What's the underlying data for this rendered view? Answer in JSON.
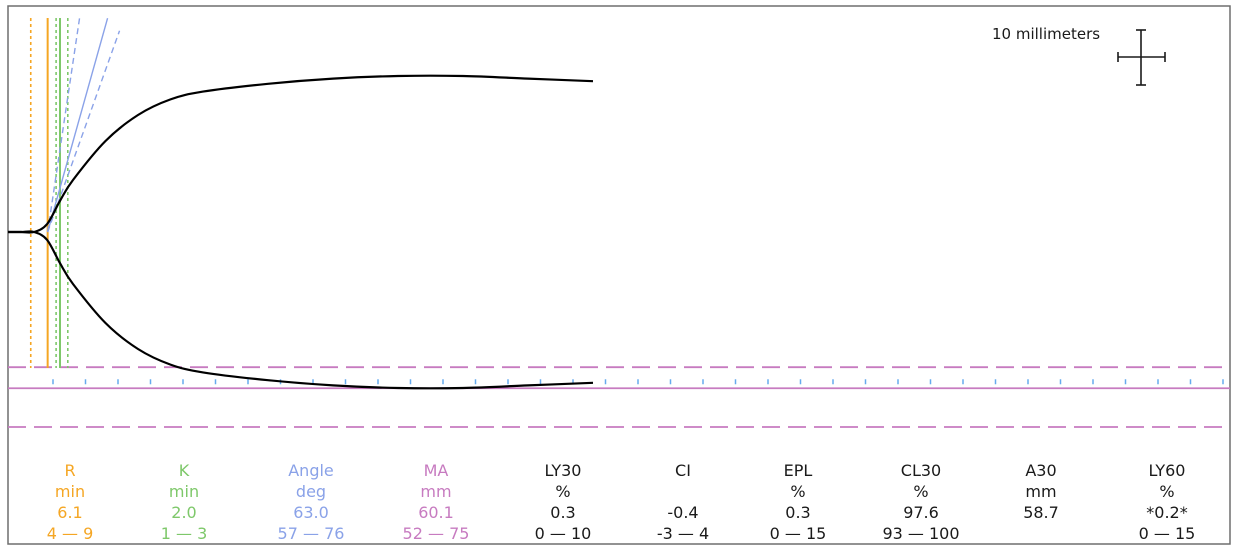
{
  "colors": {
    "R": "#f5a623",
    "K": "#7ec86a",
    "Angle": "#8aa2e8",
    "MA": "#c77bc0",
    "default": "#1a1a1a",
    "frame": "#6e6e6e",
    "ticks": "#66aaee"
  },
  "scale_bar": {
    "label": "10 millimeters"
  },
  "chart_data": {
    "type": "line",
    "title": "",
    "xlabel": "",
    "ylabel": "",
    "grid": false,
    "trace": {
      "name": "",
      "x_min": [
        0,
        2,
        4,
        6,
        8,
        10,
        15,
        20,
        25,
        30,
        40,
        50,
        60,
        70,
        80,
        90
      ],
      "amplitude_mm": [
        0,
        0,
        0,
        3,
        12,
        20,
        35,
        45,
        51,
        54,
        57,
        59,
        60,
        60,
        59,
        58
      ],
      "flat_baseline_until_min": 6.1
    },
    "markers": [
      {
        "parameter": "R",
        "value_min": 6.1,
        "line": "solid"
      },
      {
        "parameter": "R",
        "value_min": 3.5,
        "line": "dotted"
      },
      {
        "parameter": "K",
        "value_min": 8.0,
        "line": "solid"
      },
      {
        "parameter": "K",
        "value_min": 7.4,
        "line": "dotted"
      },
      {
        "parameter": "K",
        "value_min": 9.2,
        "line": "dotted"
      }
    ],
    "angle_lines": [
      {
        "value_deg": 63.0,
        "line": "solid"
      },
      {
        "value_deg": 57,
        "line": "dashed"
      },
      {
        "value_deg": 76,
        "line": "dashed"
      }
    ],
    "ma_reference": [
      {
        "value_mm": 60.1,
        "line": "solid"
      },
      {
        "value_mm": 52,
        "line": "dashed"
      },
      {
        "value_mm": 75,
        "line": "dashed"
      }
    ],
    "parameters": [
      {
        "key": "R",
        "name": "R",
        "unit": "min",
        "value": "6.1",
        "range": "4 — 9"
      },
      {
        "key": "K",
        "name": "K",
        "unit": "min",
        "value": "2.0",
        "range": "1 — 3"
      },
      {
        "key": "Angle",
        "name": "Angle",
        "unit": "deg",
        "value": "63.0",
        "range": "57 — 76"
      },
      {
        "key": "MA",
        "name": "MA",
        "unit": "mm",
        "value": "60.1",
        "range": "52 — 75"
      },
      {
        "key": "LY30",
        "name": "LY30",
        "unit": "%",
        "value": "0.3",
        "range": "0 — 10"
      },
      {
        "key": "CI",
        "name": "CI",
        "unit": "",
        "value": "-0.4",
        "range": "-3 — 4"
      },
      {
        "key": "EPL",
        "name": "EPL",
        "unit": "%",
        "value": "0.3",
        "range": "0 — 15"
      },
      {
        "key": "CL30",
        "name": "CL30",
        "unit": "%",
        "value": "97.6",
        "range": "93 — 100"
      },
      {
        "key": "A30",
        "name": "A30",
        "unit": "mm",
        "value": "58.7",
        "range": ""
      },
      {
        "key": "LY60",
        "name": "LY60",
        "unit": "%",
        "value": "*0.2*",
        "range": "0 — 15"
      }
    ]
  }
}
